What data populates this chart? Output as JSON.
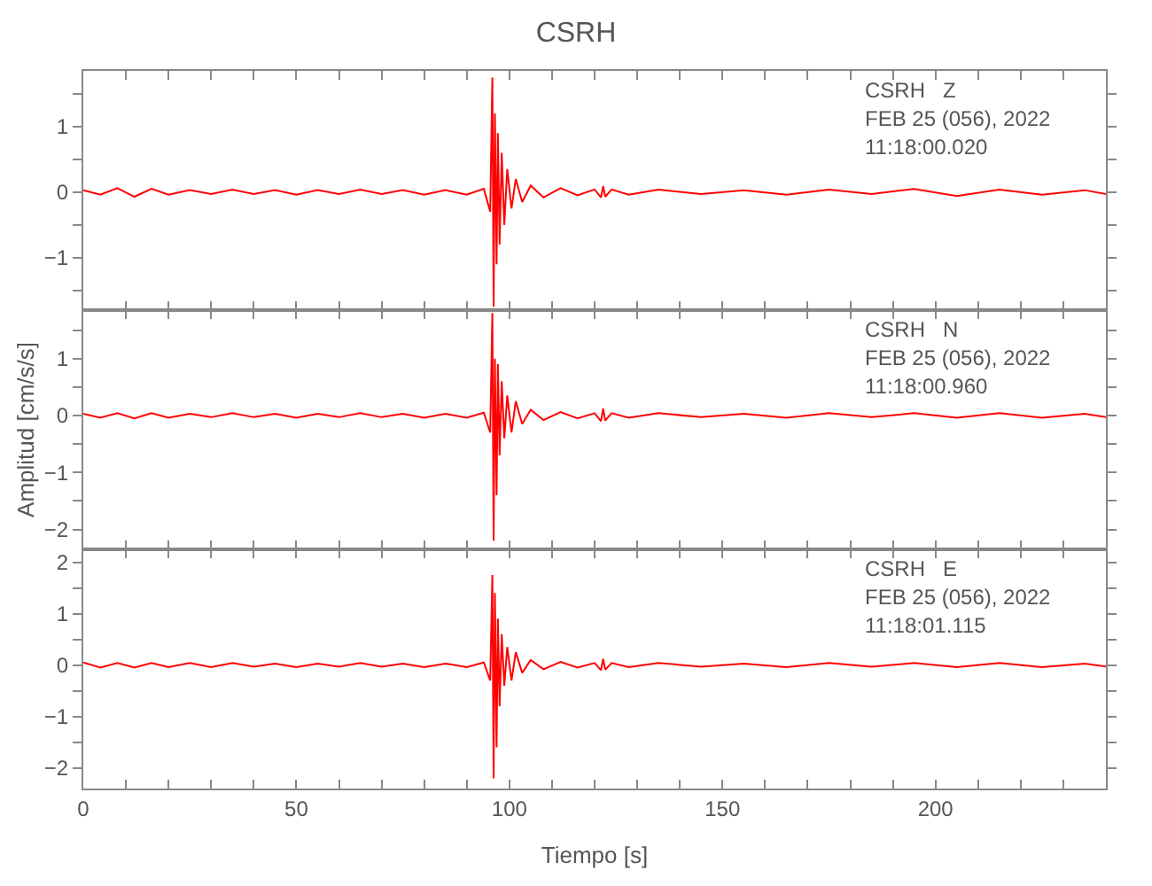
{
  "chart_data": [
    {
      "type": "line",
      "title": "CSRH",
      "annotations": [
        "CSRH   Z",
        "FEB 25 (056), 2022",
        "11:18:00.020"
      ],
      "tick_labels": "y",
      "x": [
        0,
        4,
        8,
        12,
        16,
        20,
        25,
        30,
        35,
        40,
        45,
        50,
        55,
        60,
        65,
        70,
        75,
        80,
        85,
        90,
        94,
        95.5,
        96,
        96.3,
        96.6,
        97,
        97.3,
        97.7,
        98.2,
        98.8,
        99.5,
        100.5,
        101.5,
        103,
        105,
        108,
        112,
        116,
        120,
        121.5,
        122,
        122.5,
        124,
        128,
        135,
        145,
        155,
        165,
        175,
        185,
        195,
        205,
        215,
        225,
        235,
        240
      ],
      "series": [
        {
          "color": "#ff0000",
          "values": [
            0.03,
            -0.04,
            0.06,
            -0.07,
            0.05,
            -0.04,
            0.03,
            -0.03,
            0.04,
            -0.03,
            0.03,
            -0.04,
            0.03,
            -0.03,
            0.04,
            -0.03,
            0.03,
            -0.04,
            0.03,
            -0.04,
            0.05,
            -0.3,
            1.75,
            -1.75,
            1.2,
            -1.1,
            0.9,
            -0.8,
            0.6,
            -0.5,
            0.35,
            -0.25,
            0.2,
            -0.15,
            0.1,
            -0.08,
            0.06,
            -0.05,
            0.04,
            -0.08,
            0.09,
            -0.07,
            0.04,
            -0.04,
            0.04,
            -0.03,
            0.03,
            -0.04,
            0.04,
            -0.03,
            0.05,
            -0.06,
            0.04,
            -0.04,
            0.03,
            -0.03
          ]
        }
      ],
      "xlim": [
        0,
        240
      ],
      "xticks": [
        0,
        {
          "value": 10,
          "label": null
        },
        {
          "value": 20,
          "label": null
        },
        {
          "value": 30,
          "label": null
        },
        {
          "value": 40,
          "label": null
        },
        50,
        {
          "value": 60,
          "label": null
        },
        {
          "value": 70,
          "label": null
        },
        {
          "value": 80,
          "label": null
        },
        {
          "value": 90,
          "label": null
        },
        100,
        {
          "value": 110,
          "label": null
        },
        {
          "value": 120,
          "label": null
        },
        {
          "value": 130,
          "label": null
        },
        {
          "value": 140,
          "label": null
        },
        150,
        {
          "value": 160,
          "label": null
        },
        {
          "value": 170,
          "label": null
        },
        {
          "value": 180,
          "label": null
        },
        {
          "value": 190,
          "label": null
        },
        200,
        {
          "value": 210,
          "label": null
        },
        {
          "value": 220,
          "label": null
        },
        {
          "value": 230,
          "label": null
        }
      ],
      "ylim": [
        -1.8,
        1.85
      ],
      "yticks": [
        {
          "value": -1.5,
          "label": null
        },
        {
          "value": -1,
          "label": "−1"
        },
        {
          "value": -0.5,
          "label": null
        },
        0,
        {
          "value": 0.5,
          "label": null
        },
        1,
        {
          "value": 1.5,
          "label": null
        }
      ]
    },
    {
      "type": "line",
      "ylabel": "Amplitud [cm/s/s]",
      "annotations": [
        "CSRH   N",
        "FEB 25 (056), 2022",
        "11:18:00.960"
      ],
      "tick_labels": "y",
      "x": [
        0,
        4,
        8,
        12,
        16,
        20,
        25,
        30,
        35,
        40,
        45,
        50,
        55,
        60,
        65,
        70,
        75,
        80,
        85,
        90,
        94,
        95.5,
        96,
        96.3,
        96.6,
        97,
        97.3,
        97.7,
        98.2,
        98.8,
        99.5,
        100.5,
        101.5,
        103,
        105,
        108,
        112,
        116,
        120,
        121.5,
        122,
        122.5,
        124,
        128,
        135,
        145,
        155,
        165,
        175,
        185,
        195,
        205,
        215,
        225,
        235,
        240
      ],
      "series": [
        {
          "color": "#ff0000",
          "values": [
            0.03,
            -0.04,
            0.04,
            -0.05,
            0.04,
            -0.04,
            0.03,
            -0.03,
            0.04,
            -0.03,
            0.03,
            -0.04,
            0.03,
            -0.03,
            0.04,
            -0.03,
            0.03,
            -0.04,
            0.03,
            -0.04,
            0.05,
            -0.3,
            1.8,
            -2.2,
            1.0,
            -1.4,
            0.9,
            -0.7,
            0.6,
            -0.4,
            0.35,
            -0.3,
            0.25,
            -0.15,
            0.1,
            -0.08,
            0.06,
            -0.05,
            0.04,
            -0.1,
            0.12,
            -0.09,
            0.04,
            -0.04,
            0.04,
            -0.03,
            0.03,
            -0.04,
            0.04,
            -0.03,
            0.04,
            -0.04,
            0.04,
            -0.04,
            0.03,
            -0.03
          ]
        }
      ],
      "xlim": [
        0,
        240
      ],
      "xticks": [
        0,
        {
          "value": 10,
          "label": null
        },
        {
          "value": 20,
          "label": null
        },
        {
          "value": 30,
          "label": null
        },
        {
          "value": 40,
          "label": null
        },
        50,
        {
          "value": 60,
          "label": null
        },
        {
          "value": 70,
          "label": null
        },
        {
          "value": 80,
          "label": null
        },
        {
          "value": 90,
          "label": null
        },
        100,
        {
          "value": 110,
          "label": null
        },
        {
          "value": 120,
          "label": null
        },
        {
          "value": 130,
          "label": null
        },
        {
          "value": 140,
          "label": null
        },
        150,
        {
          "value": 160,
          "label": null
        },
        {
          "value": 170,
          "label": null
        },
        {
          "value": 180,
          "label": null
        },
        {
          "value": 190,
          "label": null
        },
        200,
        {
          "value": 210,
          "label": null
        },
        {
          "value": 220,
          "label": null
        },
        {
          "value": 230,
          "label": null
        }
      ],
      "ylim": [
        -2.35,
        1.85
      ],
      "yticks": [
        {
          "value": -2,
          "label": "−2"
        },
        {
          "value": -1.5,
          "label": null
        },
        {
          "value": -1,
          "label": "−1"
        },
        {
          "value": -0.5,
          "label": null
        },
        0,
        {
          "value": 0.5,
          "label": null
        },
        1,
        {
          "value": 1.5,
          "label": null
        }
      ]
    },
    {
      "type": "line",
      "xlabel": "Tiempo [s]",
      "annotations": [
        "CSRH   E",
        "FEB 25 (056), 2022",
        "11:18:01.115"
      ],
      "x": [
        0,
        4,
        8,
        12,
        16,
        20,
        25,
        30,
        35,
        40,
        45,
        50,
        55,
        60,
        65,
        70,
        75,
        80,
        85,
        90,
        94,
        95.5,
        96,
        96.3,
        96.6,
        97,
        97.3,
        97.7,
        98.2,
        98.8,
        99.5,
        100.5,
        101.5,
        103,
        105,
        108,
        112,
        116,
        120,
        121.5,
        122,
        122.5,
        124,
        128,
        135,
        145,
        155,
        165,
        175,
        185,
        195,
        205,
        215,
        225,
        235,
        240
      ],
      "series": [
        {
          "color": "#ff0000",
          "values": [
            0.05,
            -0.05,
            0.04,
            -0.05,
            0.04,
            -0.04,
            0.04,
            -0.04,
            0.04,
            -0.03,
            0.03,
            -0.04,
            0.03,
            -0.03,
            0.04,
            -0.03,
            0.03,
            -0.04,
            0.03,
            -0.04,
            0.05,
            -0.3,
            1.75,
            -2.2,
            1.4,
            -1.6,
            0.9,
            -0.8,
            0.6,
            -0.4,
            0.35,
            -0.3,
            0.25,
            -0.15,
            0.1,
            -0.08,
            0.06,
            -0.05,
            0.04,
            -0.1,
            0.12,
            -0.09,
            0.04,
            -0.04,
            0.04,
            -0.03,
            0.03,
            -0.04,
            0.04,
            -0.03,
            0.04,
            -0.04,
            0.04,
            -0.04,
            0.03,
            -0.03
          ]
        }
      ],
      "xlim": [
        0,
        240
      ],
      "xticks": [
        0,
        {
          "value": 10,
          "label": null
        },
        {
          "value": 20,
          "label": null
        },
        {
          "value": 30,
          "label": null
        },
        {
          "value": 40,
          "label": null
        },
        50,
        {
          "value": 60,
          "label": null
        },
        {
          "value": 70,
          "label": null
        },
        {
          "value": 80,
          "label": null
        },
        {
          "value": 90,
          "label": null
        },
        100,
        {
          "value": 110,
          "label": null
        },
        {
          "value": 120,
          "label": null
        },
        {
          "value": 130,
          "label": null
        },
        {
          "value": 140,
          "label": null
        },
        150,
        {
          "value": 160,
          "label": null
        },
        {
          "value": 170,
          "label": null
        },
        {
          "value": 180,
          "label": null
        },
        {
          "value": 190,
          "label": null
        },
        200,
        {
          "value": 210,
          "label": null
        },
        {
          "value": 220,
          "label": null
        },
        {
          "value": 230,
          "label": null
        }
      ],
      "ylim": [
        -2.4,
        2.25
      ],
      "yticks": [
        {
          "value": -2,
          "label": "−2"
        },
        {
          "value": -1.5,
          "label": null
        },
        {
          "value": -1,
          "label": "−1"
        },
        {
          "value": -0.5,
          "label": null
        },
        0,
        {
          "value": 0.5,
          "label": null
        },
        1,
        {
          "value": 1.5,
          "label": null
        },
        2
      ]
    }
  ]
}
